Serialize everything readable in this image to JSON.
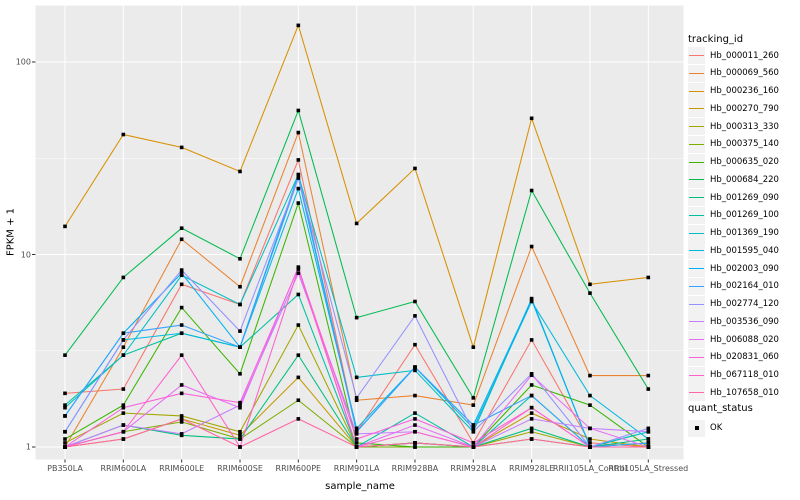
{
  "chart_data": {
    "type": "line",
    "title": "",
    "xlabel": "sample_name",
    "ylabel": "FPKM + 1",
    "y_scale": "log10",
    "y_ticks": [
      1,
      10,
      100
    ],
    "y_minor_ticks": [
      3.162,
      31.62
    ],
    "ylim": [
      0.9,
      170
    ],
    "legend_position": "right",
    "legend_title": "tracking_id",
    "legend2_title": "quant_status",
    "legend2_items": [
      {
        "label": "OK",
        "marker": "black-square"
      }
    ],
    "point_marker": "black-square",
    "categories": [
      "PB350LA",
      "RRIM600LA",
      "RRIM600LE",
      "RRIM600SE",
      "RRIM600PE",
      "RRIM901LA",
      "RRIM928BA",
      "RRIM928LA",
      "RRIM928LE",
      "RRII105LA_Control",
      "RRII105LA_Stressed"
    ],
    "series": [
      {
        "name": "Hb_000011_260",
        "color": "#F8766D",
        "values": [
          1.9,
          2.0,
          7.0,
          5.5,
          31,
          1.2,
          3.4,
          1.05,
          3.6,
          1.05,
          1.0
        ]
      },
      {
        "name": "Hb_000069_560",
        "color": "#EA8331",
        "values": [
          1.0,
          3.3,
          12.0,
          6.8,
          43,
          1.75,
          1.85,
          1.65,
          11,
          2.35,
          2.35
        ]
      },
      {
        "name": "Hb_000236_160",
        "color": "#D89000",
        "values": [
          14,
          42,
          36,
          27,
          155,
          14.5,
          28,
          3.3,
          51,
          7.0,
          7.6
        ]
      },
      {
        "name": "Hb_000270_790",
        "color": "#C49A00",
        "values": [
          1.0,
          1.1,
          1.4,
          1.15,
          2.3,
          1.0,
          1.05,
          1.0,
          1.5,
          1.1,
          1.0
        ]
      },
      {
        "name": "Hb_000313_330",
        "color": "#A3A500",
        "values": [
          1.05,
          1.5,
          1.45,
          1.2,
          4.3,
          1.0,
          1.05,
          1.0,
          1.2,
          1.0,
          1.05
        ]
      },
      {
        "name": "Hb_000375_140",
        "color": "#7CAE00",
        "values": [
          1.0,
          1.2,
          1.35,
          1.1,
          1.75,
          1.0,
          1.0,
          1.0,
          1.1,
          1.0,
          1.0
        ]
      },
      {
        "name": "Hb_000635_020",
        "color": "#39B600",
        "values": [
          1.1,
          1.65,
          5.3,
          2.4,
          18.5,
          1.05,
          1.0,
          1.0,
          2.1,
          1.65,
          1.0
        ]
      },
      {
        "name": "Hb_000684_220",
        "color": "#00BB4E",
        "values": [
          3.0,
          7.6,
          13.7,
          9.5,
          56,
          4.7,
          5.7,
          1.8,
          21.5,
          6.3,
          2.0
        ]
      },
      {
        "name": "Hb_001269_090",
        "color": "#00BF7D",
        "values": [
          1.0,
          1.3,
          1.15,
          1.1,
          3.0,
          1.0,
          1.05,
          1.0,
          1.25,
          1.0,
          1.1
        ]
      },
      {
        "name": "Hb_001269_100",
        "color": "#00C1A3",
        "values": [
          1.65,
          3.0,
          3.9,
          3.3,
          6.2,
          1.0,
          1.5,
          1.0,
          1.85,
          1.0,
          1.2
        ]
      },
      {
        "name": "Hb_001369_190",
        "color": "#00BFC4",
        "values": [
          1.6,
          3.0,
          7.8,
          5.5,
          26,
          2.3,
          2.5,
          1.2,
          5.9,
          1.0,
          1.2
        ]
      },
      {
        "name": "Hb_001595_040",
        "color": "#00BAE0",
        "values": [
          1.2,
          3.6,
          3.9,
          3.3,
          22,
          1.25,
          2.6,
          1.25,
          5.7,
          1.85,
          1.1
        ]
      },
      {
        "name": "Hb_002003_090",
        "color": "#00B0F6",
        "values": [
          1.45,
          3.9,
          8.0,
          3.3,
          26,
          1.2,
          2.6,
          1.3,
          5.8,
          1.0,
          1.05
        ]
      },
      {
        "name": "Hb_002164_010",
        "color": "#35A2FF",
        "values": [
          1.45,
          3.9,
          4.3,
          3.3,
          25,
          1.2,
          2.6,
          1.3,
          1.85,
          1.0,
          1.05
        ]
      },
      {
        "name": "Hb_002774_120",
        "color": "#9590FF",
        "values": [
          1.2,
          3.6,
          8.3,
          4.0,
          25,
          1.8,
          4.8,
          1.2,
          2.4,
          1.0,
          1.25
        ]
      },
      {
        "name": "Hb_003536_090",
        "color": "#C77CFF",
        "values": [
          1.0,
          1.3,
          1.17,
          1.65,
          8.0,
          1.17,
          1.2,
          1.0,
          1.4,
          1.25,
          1.2
        ]
      },
      {
        "name": "Hb_006088_020",
        "color": "#E76BF3",
        "values": [
          1.0,
          1.2,
          2.1,
          1.6,
          8.6,
          1.0,
          1.3,
          1.0,
          2.36,
          1.25,
          1.0
        ]
      },
      {
        "name": "Hb_020831_060",
        "color": "#FA62DB",
        "values": [
          1.0,
          1.6,
          1.9,
          1.7,
          8.5,
          1.1,
          1.4,
          1.05,
          1.6,
          1.0,
          1.0
        ]
      },
      {
        "name": "Hb_067118_010",
        "color": "#FF61CC",
        "values": [
          1.0,
          1.2,
          3.0,
          1.0,
          8.4,
          1.0,
          1.2,
          1.0,
          1.6,
          1.0,
          1.0
        ]
      },
      {
        "name": "Hb_107658_010",
        "color": "#FF67A4",
        "values": [
          1.0,
          1.1,
          1.4,
          1.0,
          1.4,
          1.0,
          1.05,
          1.0,
          1.1,
          1.0,
          1.0
        ]
      }
    ]
  },
  "style": {
    "panel_bg": "#EBEBEB",
    "grid_color": "#FFFFFF",
    "tick_color": "#333333",
    "tick_label_color": "#4D4D4D",
    "point_color": "#000000",
    "legend_key_bg": "#F2F2F2"
  }
}
